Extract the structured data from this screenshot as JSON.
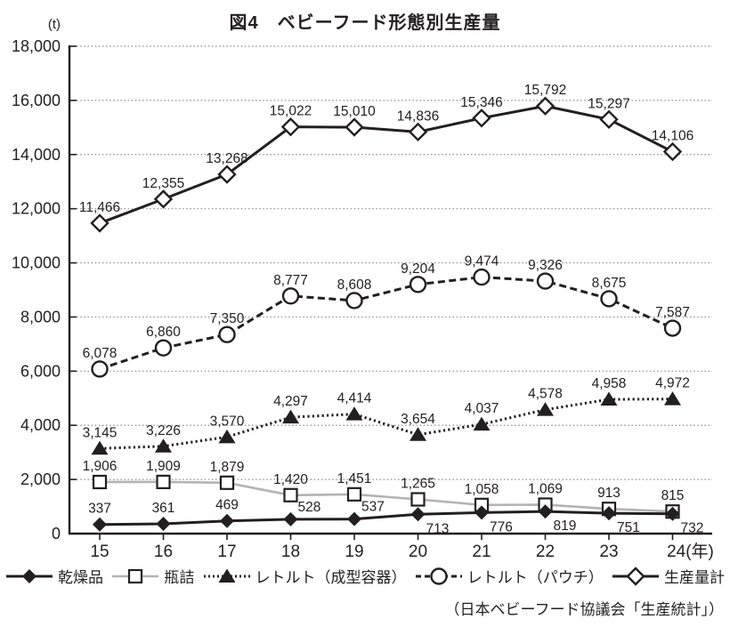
{
  "chart_data": {
    "type": "line",
    "title": "図4　ベビーフード形態別生産量",
    "unit_label": "(t)",
    "source": "（日本ベビーフード協議会「生産統計」）",
    "x_labels": [
      "15",
      "16",
      "17",
      "18",
      "19",
      "20",
      "21",
      "22",
      "23",
      "24(年)"
    ],
    "xlabel": "",
    "ylabel": "(t)",
    "ylim": [
      0,
      18000
    ],
    "y_step": 2000,
    "grid": "horizontal-dotted",
    "legend_position": "bottom",
    "data_labels_visible": true,
    "colors": {
      "line": "#231f20",
      "gray_line": "#b3b3b3",
      "grid": "#8a8a8a",
      "text": "#231f20",
      "background": "#ffffff"
    },
    "series": [
      {
        "name": "乾燥品",
        "marker": "diamond-filled",
        "line": "solid",
        "values": [
          337,
          361,
          469,
          528,
          537,
          713,
          776,
          819,
          751,
          732
        ]
      },
      {
        "name": "瓶詰",
        "marker": "square-open",
        "line": "solid-gray",
        "values": [
          1906,
          1909,
          1879,
          1420,
          1451,
          1265,
          1058,
          1069,
          913,
          815
        ]
      },
      {
        "name": "レトルト（成型容器）",
        "marker": "triangle-filled",
        "line": "dotted",
        "values": [
          3145,
          3226,
          3570,
          4297,
          4414,
          3654,
          4037,
          4578,
          4958,
          4972
        ]
      },
      {
        "name": "レトルト（パウチ）",
        "marker": "circle-open",
        "line": "dashed",
        "values": [
          6078,
          6860,
          7350,
          8777,
          8608,
          9204,
          9474,
          9326,
          8675,
          7587
        ]
      },
      {
        "name": "生産量計",
        "marker": "diamond-open",
        "line": "solid",
        "values": [
          11466,
          12355,
          13268,
          15022,
          15010,
          14836,
          15346,
          15792,
          15297,
          14106
        ]
      }
    ],
    "draw_order": [
      1,
      0,
      2,
      3,
      4
    ]
  }
}
